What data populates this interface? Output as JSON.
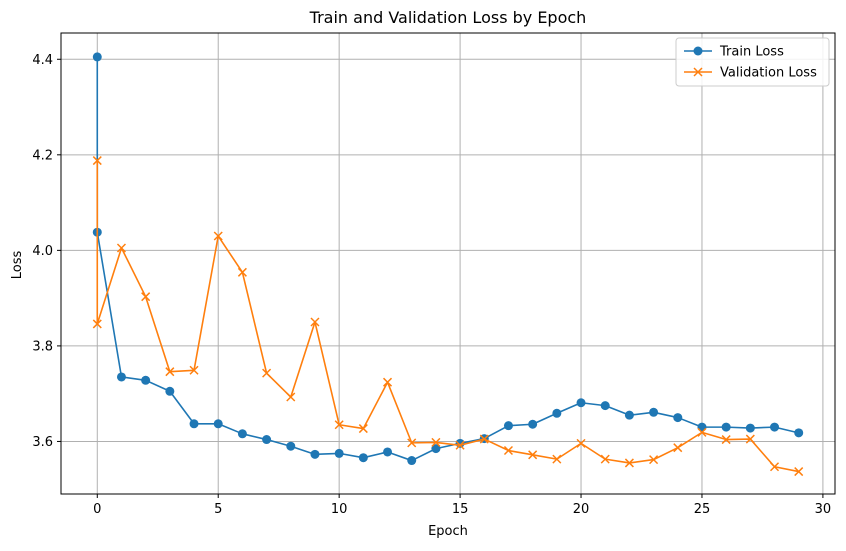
{
  "chart_data": {
    "type": "line",
    "title": "Train and Validation Loss by Epoch",
    "xlabel": "Epoch",
    "ylabel": "Loss",
    "xlim": [
      -1.5,
      30.5
    ],
    "ylim": [
      3.49,
      4.455
    ],
    "xticks": [
      0,
      5,
      10,
      15,
      20,
      25,
      30
    ],
    "yticks": [
      3.6,
      3.8,
      4.0,
      4.2,
      4.4
    ],
    "grid": true,
    "legend_position": "top-right",
    "series": [
      {
        "name": "Train Loss",
        "color": "#1f77b4",
        "marker": "circle",
        "points": [
          [
            0,
            4.405
          ],
          [
            0,
            4.038
          ],
          [
            1,
            3.735
          ],
          [
            2,
            3.728
          ],
          [
            3,
            3.705
          ],
          [
            4,
            3.637
          ],
          [
            5,
            3.637
          ],
          [
            6,
            3.616
          ],
          [
            7,
            3.604
          ],
          [
            8,
            3.59
          ],
          [
            9,
            3.573
          ],
          [
            10,
            3.575
          ],
          [
            11,
            3.566
          ],
          [
            12,
            3.578
          ],
          [
            13,
            3.56
          ],
          [
            14,
            3.585
          ],
          [
            15,
            3.596
          ],
          [
            16,
            3.606
          ],
          [
            17,
            3.633
          ],
          [
            18,
            3.636
          ],
          [
            19,
            3.659
          ],
          [
            20,
            3.681
          ],
          [
            21,
            3.675
          ],
          [
            22,
            3.655
          ],
          [
            23,
            3.661
          ],
          [
            24,
            3.65
          ],
          [
            25,
            3.63
          ],
          [
            26,
            3.63
          ],
          [
            27,
            3.628
          ],
          [
            28,
            3.63
          ],
          [
            29,
            3.618
          ]
        ]
      },
      {
        "name": "Validation Loss",
        "color": "#ff7f0e",
        "marker": "x",
        "points": [
          [
            0,
            4.188
          ],
          [
            0,
            3.846
          ],
          [
            1,
            4.005
          ],
          [
            2,
            3.903
          ],
          [
            3,
            3.746
          ],
          [
            4,
            3.749
          ],
          [
            5,
            4.03
          ],
          [
            6,
            3.954
          ],
          [
            7,
            3.743
          ],
          [
            8,
            3.693
          ],
          [
            9,
            3.85
          ],
          [
            10,
            3.635
          ],
          [
            11,
            3.627
          ],
          [
            12,
            3.724
          ],
          [
            13,
            3.597
          ],
          [
            14,
            3.598
          ],
          [
            15,
            3.592
          ],
          [
            16,
            3.605
          ],
          [
            17,
            3.581
          ],
          [
            18,
            3.572
          ],
          [
            19,
            3.563
          ],
          [
            20,
            3.596
          ],
          [
            21,
            3.563
          ],
          [
            22,
            3.555
          ],
          [
            23,
            3.562
          ],
          [
            24,
            3.587
          ],
          [
            25,
            3.619
          ],
          [
            26,
            3.604
          ],
          [
            27,
            3.605
          ],
          [
            28,
            3.547
          ],
          [
            29,
            3.537
          ]
        ]
      }
    ]
  }
}
